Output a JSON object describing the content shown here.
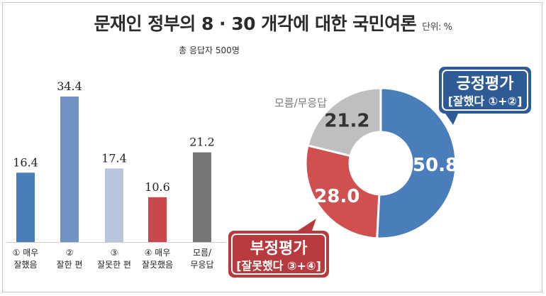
{
  "title": "문재인 정부의 8 · 30 개각에 대한 국민여론",
  "unit": "단위: %",
  "respondents": "총 응답자 500명",
  "colors": {
    "very_good": "#4a7ebb",
    "good": "#6f93c3",
    "bad": "#b7c6dc",
    "very_bad": "#c9484b",
    "unknown": "#777777",
    "positive": "#4a7ebb",
    "negative": "#d0504f",
    "dont_know": "#bfbfbf"
  },
  "chart_data": [
    {
      "type": "bar",
      "categories": [
        [
          "① 매우",
          "잘했음"
        ],
        [
          "②",
          "잘한 편"
        ],
        [
          "③",
          "잘못한 편"
        ],
        [
          "④ 매우",
          "잘못했음"
        ],
        [
          "모름/",
          "무응답"
        ]
      ],
      "values": [
        16.4,
        34.4,
        17.4,
        10.6,
        21.2
      ],
      "ylim": [
        0,
        40
      ]
    },
    {
      "type": "pie",
      "labels": [
        "긍정평가",
        "부정평가",
        "모름/무응답"
      ],
      "values": [
        50.8,
        28.0,
        21.2
      ],
      "positive_sub": "[잘했다 ①+②]",
      "negative_sub": "[잘못했다 ③+④]"
    }
  ]
}
